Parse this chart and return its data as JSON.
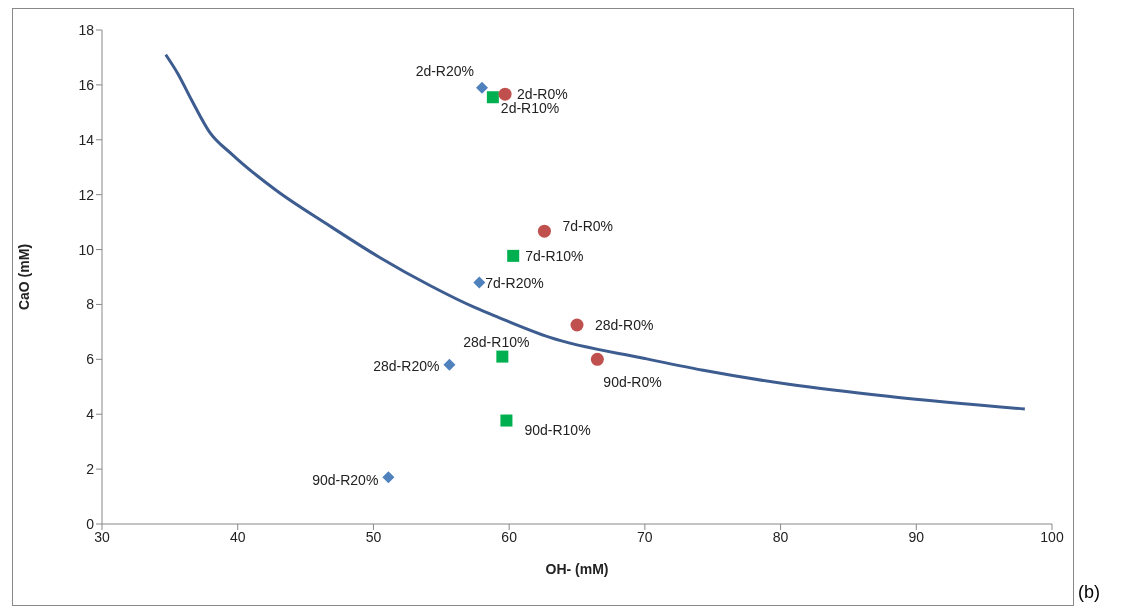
{
  "chart_data": {
    "type": "scatter",
    "xlabel": "OH- (mM)",
    "ylabel": "CaO (mM)",
    "xlim": [
      30,
      100
    ],
    "xticks": [
      30,
      40,
      50,
      60,
      70,
      80,
      90,
      100
    ],
    "ylim": [
      0,
      18
    ],
    "yticks": [
      0,
      2,
      4,
      6,
      8,
      10,
      12,
      14,
      16,
      18
    ],
    "grid": false,
    "legend": false,
    "annotations": [
      "(b)"
    ],
    "series": [
      {
        "type": "line",
        "color": "#3d5c8f",
        "marker": "none",
        "x": [
          34.7,
          35.6,
          36.6,
          37.9,
          39.6,
          42.8,
          46.6,
          50.4,
          54.2,
          57.5,
          59.2,
          63.0,
          70.0,
          74.3,
          80.6,
          88.2,
          98.0
        ],
        "values": [
          17.1,
          16.4,
          15.45,
          14.3,
          13.46,
          12.17,
          10.92,
          9.73,
          8.68,
          7.88,
          7.53,
          6.8,
          6.03,
          5.6,
          5.09,
          4.64,
          4.19
        ]
      },
      {
        "color": "#4f81bd",
        "marker": "diamond",
        "x": [
          58.0,
          57.8,
          55.6,
          51.1
        ],
        "values": [
          15.9,
          8.8,
          5.8,
          1.7
        ],
        "value_labels": [
          "2d-R20%",
          "7d-R20%",
          "28d-R20%",
          "90d-R20%"
        ]
      },
      {
        "color": "#00b050",
        "marker": "square",
        "x": [
          58.8,
          60.3,
          59.5,
          59.8
        ],
        "values": [
          15.55,
          9.77,
          6.1,
          3.77
        ],
        "value_labels": [
          "2d-R10%",
          "7d-R10%",
          "28d-R10%",
          "90d-R10%"
        ]
      },
      {
        "color": "#c0504d",
        "marker": "circle",
        "x": [
          59.7,
          62.6,
          65.0,
          66.5
        ],
        "values": [
          15.66,
          10.67,
          7.25,
          6.0
        ],
        "value_labels": [
          "2d-R0%",
          "7d-R0%",
          "28d-R0%",
          "90d-R0%"
        ]
      }
    ]
  }
}
